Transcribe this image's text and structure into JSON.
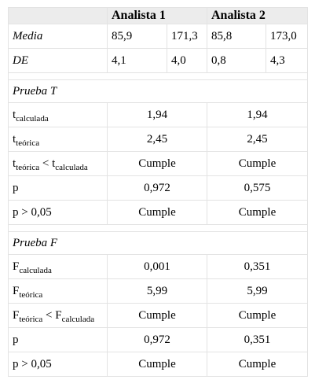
{
  "header": {
    "col0": "",
    "analista1": "Analista 1",
    "analista2": "Analista 2"
  },
  "desc_rows": [
    {
      "label": "Media",
      "a1_x": "85,9",
      "a1_y": "171,3",
      "a2_x": "85,8",
      "a2_y": "173,0"
    },
    {
      "label": "DE",
      "a1_x": "4,1",
      "a1_y": "4,0",
      "a2_x": "0,8",
      "a2_y": "4,3"
    }
  ],
  "prueba_t": {
    "title": "Prueba T",
    "tcalc": {
      "base": "t",
      "sub": "calculada",
      "a1": "1,94",
      "a2": "1,94"
    },
    "tteo": {
      "base": "t",
      "sub": "teórica",
      "a1": "2,45",
      "a2": "2,45"
    },
    "tcomp": {
      "base1": "t",
      "sub1": "teórica",
      "op": " < ",
      "base2": "t",
      "sub2": "calculada",
      "a1": "Cumple",
      "a2": "Cumple"
    },
    "p": {
      "label": "p",
      "a1": "0,972",
      "a2": "0,575"
    },
    "pcomp": {
      "label": "p > 0,05",
      "a1": "Cumple",
      "a2": "Cumple"
    }
  },
  "prueba_f": {
    "title": "Prueba F",
    "fcalc": {
      "base": "F",
      "sub": "calculada",
      "a1": "0,001",
      "a2": "0,351"
    },
    "fteo": {
      "base": "F",
      "sub": "teórica",
      "a1": "5,99",
      "a2": "5,99"
    },
    "fcomp": {
      "base1": "F",
      "sub1": "teórica",
      "op": " < ",
      "base2": "F",
      "sub2": "calculada",
      "a1": "Cumple",
      "a2": "Cumple"
    },
    "p": {
      "label": "p",
      "a1": "0,972",
      "a2": "0,351"
    },
    "pcomp": {
      "label": "p > 0,05",
      "a1": "Cumple",
      "a2": "Cumple"
    }
  }
}
